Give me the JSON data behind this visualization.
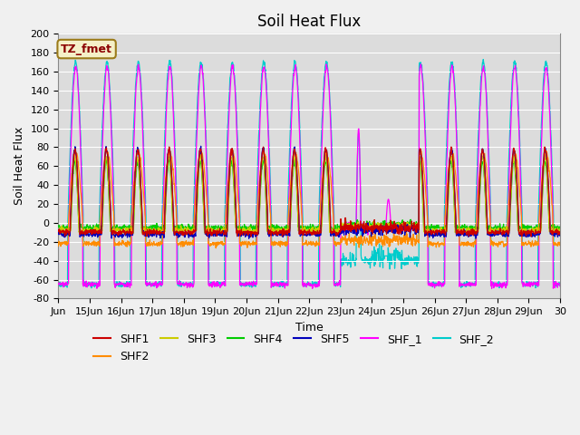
{
  "title": "Soil Heat Flux",
  "xlabel": "Time",
  "ylabel": "Soil Heat Flux",
  "ylim": [
    -80,
    200
  ],
  "annotation_text": "TZ_fmet",
  "annotation_facecolor": "#F5F0C8",
  "annotation_edgecolor": "#9B7B1A",
  "annotation_textcolor": "#8B0000",
  "bg_color": "#DCDCDC",
  "fig_color": "#F0F0F0",
  "series_colors": {
    "SHF1": "#CC0000",
    "SHF2": "#FF8C00",
    "SHF3": "#CCCC00",
    "SHF4": "#00CC00",
    "SHF5": "#0000BB",
    "SHF_1": "#FF00FF",
    "SHF_2": "#00CCCC"
  },
  "xtick_labels": [
    "Jun",
    "15Jun",
    "16Jun",
    "17Jun",
    "18Jun",
    "19Jun",
    "20Jun",
    "21Jun",
    "22Jun",
    "23Jun",
    "24Jun",
    "25Jun",
    "26Jun",
    "27Jun",
    "28Jun",
    "29Jun",
    "30"
  ],
  "ytick_values": [
    -80,
    -60,
    -40,
    -20,
    0,
    20,
    40,
    60,
    80,
    100,
    120,
    140,
    160,
    180,
    200
  ],
  "grid_color": "#FFFFFF",
  "title_fontsize": 12,
  "axis_label_fontsize": 9,
  "tick_fontsize": 8,
  "legend_fontsize": 9,
  "n_days": 16,
  "pts_per_day": 96
}
